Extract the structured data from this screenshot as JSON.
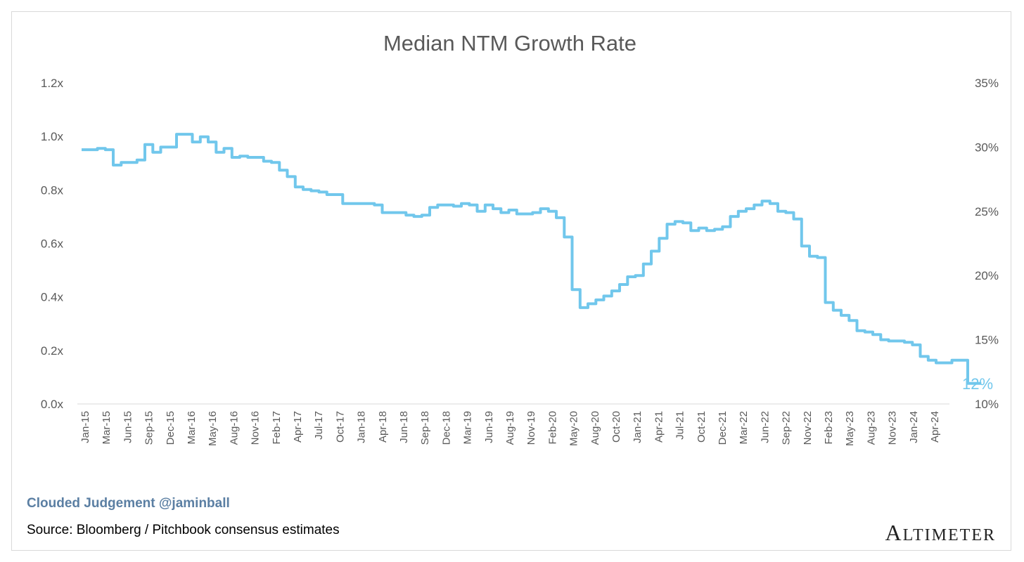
{
  "footer": {
    "credit": "Clouded Judgement @jaminball",
    "source": "Source: Bloomberg / Pitchbook consensus estimates",
    "logo": "Altimeter"
  },
  "chart_data": {
    "type": "line",
    "title": "Median NTM Growth Rate",
    "xlabel": "",
    "ylabel": "",
    "color": "#71c7ec",
    "grid": false,
    "legend": "none",
    "x_tick_labels": [
      "Jan-15",
      "Mar-15",
      "Jun-15",
      "Sep-15",
      "Dec-15",
      "Mar-16",
      "May-16",
      "Aug-16",
      "Nov-16",
      "Feb-17",
      "Apr-17",
      "Jul-17",
      "Oct-17",
      "Jan-18",
      "Apr-18",
      "Jun-18",
      "Sep-18",
      "Dec-18",
      "Mar-19",
      "Jun-19",
      "Aug-19",
      "Nov-19",
      "Feb-20",
      "May-20",
      "Aug-20",
      "Oct-20",
      "Jan-21",
      "Apr-21",
      "Jul-21",
      "Oct-21",
      "Dec-21",
      "Mar-22",
      "Jun-22",
      "Sep-22",
      "Nov-22",
      "Feb-23",
      "May-23",
      "Aug-23",
      "Nov-23",
      "Jan-24",
      "Apr-24"
    ],
    "y_left": {
      "ticks": [
        "0.0x",
        "0.2x",
        "0.4x",
        "0.6x",
        "0.8x",
        "1.0x",
        "1.2x"
      ],
      "range": [
        0,
        1.2
      ]
    },
    "y_right": {
      "ticks": [
        "10%",
        "15%",
        "20%",
        "25%",
        "30%",
        "35%"
      ],
      "range": [
        10,
        35
      ]
    },
    "end_label": "12%",
    "series": [
      {
        "axis": "right",
        "x": [
          "2015-01",
          "2015-02",
          "2015-03",
          "2015-04",
          "2015-05",
          "2015-06",
          "2015-07",
          "2015-08",
          "2015-09",
          "2015-10",
          "2015-11",
          "2015-12",
          "2016-01",
          "2016-02",
          "2016-03",
          "2016-04",
          "2016-05",
          "2016-06",
          "2016-07",
          "2016-08",
          "2016-09",
          "2016-10",
          "2016-11",
          "2016-12",
          "2017-01",
          "2017-02",
          "2017-03",
          "2017-04",
          "2017-05",
          "2017-06",
          "2017-07",
          "2017-08",
          "2017-09",
          "2017-10",
          "2017-11",
          "2017-12",
          "2018-01",
          "2018-02",
          "2018-03",
          "2018-04",
          "2018-05",
          "2018-06",
          "2018-07",
          "2018-08",
          "2018-09",
          "2018-10",
          "2018-11",
          "2018-12",
          "2019-01",
          "2019-02",
          "2019-03",
          "2019-04",
          "2019-05",
          "2019-06",
          "2019-07",
          "2019-08",
          "2019-09",
          "2019-10",
          "2019-11",
          "2019-12",
          "2020-01",
          "2020-02",
          "2020-03",
          "2020-04",
          "2020-05",
          "2020-06",
          "2020-07",
          "2020-08",
          "2020-09",
          "2020-10",
          "2020-11",
          "2020-12",
          "2021-01",
          "2021-02",
          "2021-03",
          "2021-04",
          "2021-05",
          "2021-06",
          "2021-07",
          "2021-08",
          "2021-09",
          "2021-10",
          "2021-11",
          "2021-12",
          "2022-01",
          "2022-02",
          "2022-03",
          "2022-04",
          "2022-05",
          "2022-06",
          "2022-07",
          "2022-08",
          "2022-09",
          "2022-10",
          "2022-11",
          "2022-12",
          "2023-01",
          "2023-02",
          "2023-03",
          "2023-04",
          "2023-05",
          "2023-06",
          "2023-07",
          "2023-08",
          "2023-09",
          "2023-10",
          "2023-11",
          "2023-12",
          "2024-01",
          "2024-02",
          "2024-03",
          "2024-04",
          "2024-05",
          "2024-06"
        ],
        "y": [
          29.8,
          29.8,
          29.9,
          29.8,
          28.6,
          28.8,
          28.8,
          29.0,
          30.2,
          29.6,
          30.0,
          30.0,
          31.0,
          31.0,
          30.4,
          30.8,
          30.4,
          29.6,
          29.9,
          29.2,
          29.3,
          29.2,
          29.2,
          28.9,
          28.8,
          28.2,
          27.7,
          26.9,
          26.7,
          26.6,
          26.5,
          26.3,
          26.3,
          25.6,
          25.6,
          25.6,
          25.6,
          25.5,
          24.9,
          24.9,
          24.9,
          24.7,
          24.6,
          24.7,
          25.3,
          25.5,
          25.5,
          25.4,
          25.6,
          25.5,
          25.0,
          25.5,
          25.2,
          24.9,
          25.1,
          24.8,
          24.8,
          24.9,
          25.2,
          25.0,
          24.5,
          23.0,
          18.9,
          17.5,
          17.8,
          18.1,
          18.4,
          18.8,
          19.3,
          19.9,
          20.0,
          20.9,
          21.9,
          22.9,
          24.0,
          24.2,
          24.1,
          23.5,
          23.7,
          23.5,
          23.6,
          23.8,
          24.6,
          25.0,
          25.2,
          25.5,
          25.8,
          25.6,
          25.0,
          24.9,
          24.4,
          22.3,
          21.5,
          21.4,
          17.9,
          17.3,
          16.9,
          16.5,
          15.7,
          15.6,
          15.4,
          15.0,
          14.9,
          14.9,
          14.8,
          14.6,
          13.7,
          13.4,
          13.2,
          13.2,
          13.4,
          13.4,
          11.6,
          11.6
        ]
      }
    ]
  }
}
